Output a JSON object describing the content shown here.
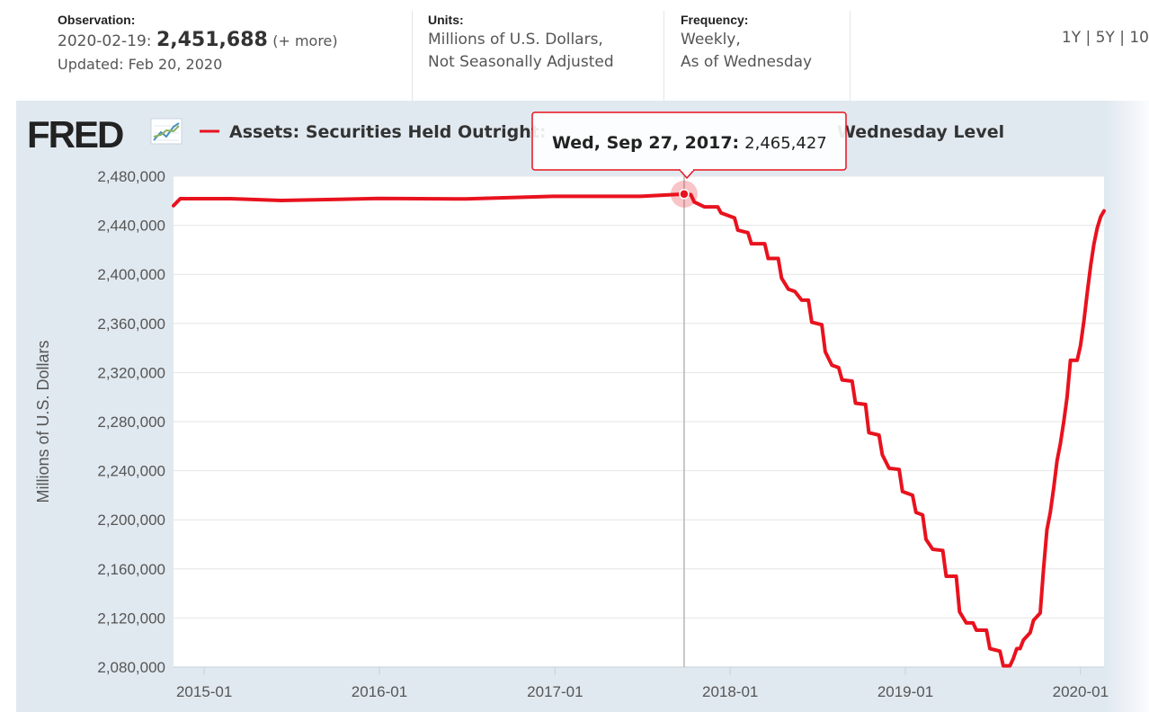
{
  "observation": {
    "label": "Observation:",
    "date": "2020-02-19:",
    "value": "2,451,688",
    "more": "(+ more)",
    "updated": "Updated: Feb 20, 2020"
  },
  "units": {
    "label": "Units:",
    "line1": "Millions of U.S. Dollars,",
    "line2": "Not Seasonally Adjusted"
  },
  "frequency": {
    "label": "Frequency:",
    "line1": "Weekly,",
    "line2": "As of Wednesday"
  },
  "ranges": "1Y | 5Y | 10",
  "brand": "FRED",
  "colors": {
    "series": "#e8121e",
    "background": "#e1e9f0",
    "plot": "#ffffff",
    "grid": "#e6e6e6"
  },
  "tooltip": {
    "date": "Wed, Sep 27, 2017:",
    "value": "2,465,427"
  },
  "chart_data": {
    "type": "line",
    "title": "Assets: Securities Held Outright: U.S. Treasury Securities: All: Wednesday Level",
    "visible_title_left": "Assets: Securities Held Outright:",
    "visible_title_right": "Wednesday Level",
    "ylabel": "Millions of U.S. Dollars",
    "xlabel": "",
    "ylim": [
      2080000,
      2480000
    ],
    "yticks": [
      2080000,
      2120000,
      2160000,
      2200000,
      2240000,
      2280000,
      2320000,
      2360000,
      2400000,
      2440000,
      2480000
    ],
    "ytick_labels": [
      "2,080,000",
      "2,120,000",
      "2,160,000",
      "2,200,000",
      "2,240,000",
      "2,280,000",
      "2,320,000",
      "2,360,000",
      "2,400,000",
      "2,440,000",
      "2,480,000"
    ],
    "xlim": [
      "2014-10-29",
      "2020-02-19"
    ],
    "xticks": [
      "2015-01-01",
      "2016-01-01",
      "2017-01-01",
      "2018-01-01",
      "2019-01-01",
      "2020-01-01"
    ],
    "xtick_labels": [
      "2015-01",
      "2016-01",
      "2017-01",
      "2018-01",
      "2019-01",
      "2020-01"
    ],
    "grid": true,
    "legend": "top-left",
    "highlight": {
      "x": "2017-09-27",
      "y": 2465427
    },
    "series": [
      {
        "name": "Assets: Securities Held Outright: U.S. Treasury Securities: All: Wednesday Level",
        "points": [
          [
            "2014-10-29",
            2456000
          ],
          [
            "2014-11-12",
            2461700
          ],
          [
            "2015-02-25",
            2461700
          ],
          [
            "2015-06-10",
            2460200
          ],
          [
            "2015-12-30",
            2461800
          ],
          [
            "2016-06-29",
            2461500
          ],
          [
            "2016-12-28",
            2463600
          ],
          [
            "2017-06-28",
            2463600
          ],
          [
            "2017-09-27",
            2465427
          ],
          [
            "2017-10-11",
            2465000
          ],
          [
            "2017-10-18",
            2459000
          ],
          [
            "2017-11-08",
            2455000
          ],
          [
            "2017-12-06",
            2455000
          ],
          [
            "2017-12-13",
            2450000
          ],
          [
            "2018-01-10",
            2446000
          ],
          [
            "2018-01-17",
            2436000
          ],
          [
            "2018-02-07",
            2434000
          ],
          [
            "2018-02-14",
            2425000
          ],
          [
            "2018-03-14",
            2425000
          ],
          [
            "2018-03-21",
            2413000
          ],
          [
            "2018-04-11",
            2413000
          ],
          [
            "2018-04-18",
            2397000
          ],
          [
            "2018-05-02",
            2388000
          ],
          [
            "2018-05-16",
            2386000
          ],
          [
            "2018-05-30",
            2379000
          ],
          [
            "2018-06-13",
            2379000
          ],
          [
            "2018-06-20",
            2361000
          ],
          [
            "2018-07-11",
            2359000
          ],
          [
            "2018-07-18",
            2337000
          ],
          [
            "2018-08-01",
            2326000
          ],
          [
            "2018-08-15",
            2324000
          ],
          [
            "2018-08-22",
            2314000
          ],
          [
            "2018-09-12",
            2313000
          ],
          [
            "2018-09-19",
            2295000
          ],
          [
            "2018-10-10",
            2294000
          ],
          [
            "2018-10-17",
            2271000
          ],
          [
            "2018-11-07",
            2269000
          ],
          [
            "2018-11-14",
            2253000
          ],
          [
            "2018-11-28",
            2242000
          ],
          [
            "2018-12-19",
            2241000
          ],
          [
            "2018-12-26",
            2223000
          ],
          [
            "2019-01-16",
            2220000
          ],
          [
            "2019-01-23",
            2206000
          ],
          [
            "2019-02-06",
            2204000
          ],
          [
            "2019-02-13",
            2184000
          ],
          [
            "2019-02-27",
            2176000
          ],
          [
            "2019-03-20",
            2175000
          ],
          [
            "2019-03-27",
            2154000
          ],
          [
            "2019-04-17",
            2154000
          ],
          [
            "2019-04-24",
            2125000
          ],
          [
            "2019-05-08",
            2116000
          ],
          [
            "2019-05-22",
            2116000
          ],
          [
            "2019-05-29",
            2110000
          ],
          [
            "2019-06-19",
            2110000
          ],
          [
            "2019-06-26",
            2095000
          ],
          [
            "2019-07-17",
            2093000
          ],
          [
            "2019-07-24",
            2081000
          ],
          [
            "2019-08-07",
            2081000
          ],
          [
            "2019-08-14",
            2087000
          ],
          [
            "2019-08-21",
            2095000
          ],
          [
            "2019-08-28",
            2095000
          ],
          [
            "2019-09-04",
            2102000
          ],
          [
            "2019-09-18",
            2108000
          ],
          [
            "2019-09-25",
            2118000
          ],
          [
            "2019-10-09",
            2124000
          ],
          [
            "2019-10-16",
            2160000
          ],
          [
            "2019-10-23",
            2192000
          ],
          [
            "2019-10-30",
            2206000
          ],
          [
            "2019-11-06",
            2226000
          ],
          [
            "2019-11-13",
            2248000
          ],
          [
            "2019-11-20",
            2262000
          ],
          [
            "2019-11-27",
            2280000
          ],
          [
            "2019-12-04",
            2300000
          ],
          [
            "2019-12-11",
            2330000
          ],
          [
            "2019-12-25",
            2330000
          ],
          [
            "2020-01-01",
            2342000
          ],
          [
            "2020-01-08",
            2362000
          ],
          [
            "2020-01-15",
            2385000
          ],
          [
            "2020-01-22",
            2407000
          ],
          [
            "2020-01-29",
            2425000
          ],
          [
            "2020-02-05",
            2438000
          ],
          [
            "2020-02-12",
            2447000
          ],
          [
            "2020-02-19",
            2451688
          ]
        ]
      }
    ]
  }
}
